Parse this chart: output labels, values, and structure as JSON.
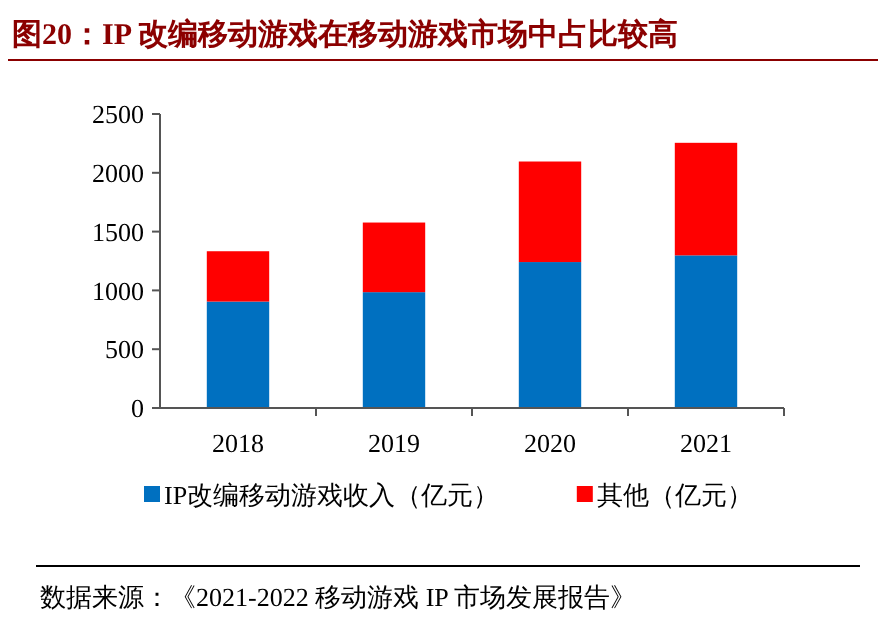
{
  "chart_data": {
    "type": "bar",
    "title": "图20：IP 改编移动游戏在移动游戏市场中占比较高",
    "categories": [
      "2018",
      "2019",
      "2020",
      "2021"
    ],
    "stacked": true,
    "series": [
      {
        "name": "IP改编移动游戏收入（亿元）",
        "color": "#0070c0",
        "values": [
          905,
          985,
          1241,
          1298
        ]
      },
      {
        "name": "其他（亿元）",
        "color": "#ff0000",
        "values": [
          428,
          592,
          855,
          957
        ]
      }
    ],
    "ylim": [
      0,
      2500
    ],
    "yticks": [
      0,
      500,
      1000,
      1500,
      2000,
      2500
    ],
    "legend": "bottom",
    "grid": false,
    "annotations": [
      "数据来源：《2021-2022 移动游戏 IP 市场发展报告》"
    ]
  }
}
